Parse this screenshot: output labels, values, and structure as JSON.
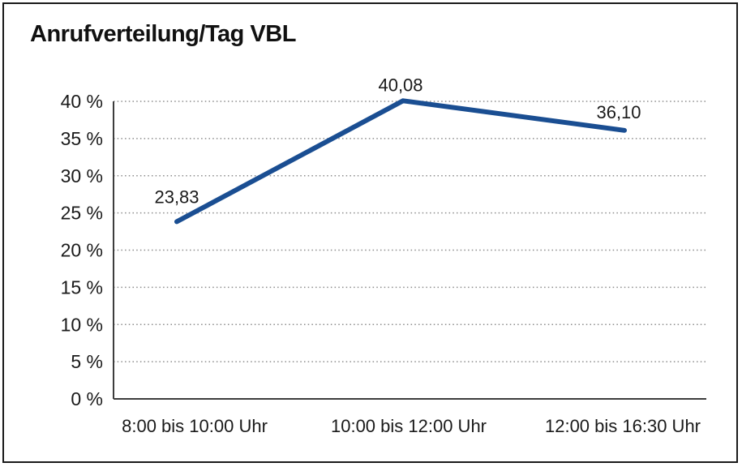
{
  "chart_data": {
    "type": "line",
    "title": "Anrufverteilung/Tag VBL",
    "categories": [
      "8:00 bis 10:00 Uhr",
      "10:00 bis 12:00 Uhr",
      "12:00 bis 16:30 Uhr"
    ],
    "values": [
      23.83,
      40.08,
      36.1
    ],
    "data_labels": [
      "23,83",
      "40,08",
      "36,10"
    ],
    "xlabel": "",
    "ylabel": "",
    "ylim": [
      0,
      40
    ],
    "ytick_step": 5,
    "ytick_labels": [
      "0 %",
      "5 %",
      "10 %",
      "15 %",
      "20 %",
      "25 %",
      "30 %",
      "35 %",
      "40 %"
    ],
    "grid": "horizontal-dotted",
    "legend": "none",
    "line_color": "#1a4e92",
    "axis_color": "#3d3d3d",
    "grid_color": "#8c8c8c",
    "text_color": "#1a1a1a",
    "frame_color": "#1a1a1a"
  }
}
